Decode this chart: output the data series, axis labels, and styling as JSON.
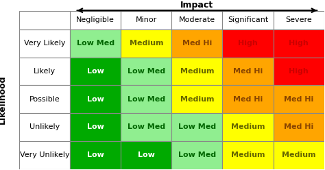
{
  "rows": [
    "Very Likely",
    "Likely",
    "Possible",
    "Unlikely",
    "Very Unlikely"
  ],
  "cols": [
    "Negligible",
    "Minor",
    "Moderate",
    "Significant",
    "Severe"
  ],
  "cell_labels": [
    [
      "Low Med",
      "Medium",
      "Med Hi",
      "High",
      "High"
    ],
    [
      "Low",
      "Low Med",
      "Medium",
      "Med Hi",
      "High"
    ],
    [
      "Low",
      "Low Med",
      "Medium",
      "Med Hi",
      "Med Hi"
    ],
    [
      "Low",
      "Low Med",
      "Low Med",
      "Medium",
      "Med Hi"
    ],
    [
      "Low",
      "Low",
      "Low Med",
      "Medium",
      "Medium"
    ]
  ],
  "cell_colors": [
    [
      "#90EE90",
      "#FFFF00",
      "#FFA500",
      "#FF0000",
      "#FF0000"
    ],
    [
      "#00AA00",
      "#90EE90",
      "#FFFF00",
      "#FFA500",
      "#FF0000"
    ],
    [
      "#00AA00",
      "#90EE90",
      "#FFFF00",
      "#FFA500",
      "#FFA500"
    ],
    [
      "#00AA00",
      "#90EE90",
      "#90EE90",
      "#FFFF00",
      "#FFA500"
    ],
    [
      "#00AA00",
      "#00AA00",
      "#90EE90",
      "#FFFF00",
      "#FFFF00"
    ]
  ],
  "cell_text_colors": [
    [
      "#006600",
      "#666600",
      "#884400",
      "#CC0000",
      "#CC0000"
    ],
    [
      "#FFFFFF",
      "#006600",
      "#666600",
      "#884400",
      "#CC0000"
    ],
    [
      "#FFFFFF",
      "#006600",
      "#666600",
      "#884400",
      "#884400"
    ],
    [
      "#FFFFFF",
      "#006600",
      "#006600",
      "#666600",
      "#884400"
    ],
    [
      "#FFFFFF",
      "#FFFFFF",
      "#006600",
      "#666600",
      "#666600"
    ]
  ],
  "title": "Impact",
  "ylabel": "Likelihood",
  "header_bg": "#FFFFFF",
  "row_header_bg": "#FFFFFF",
  "grid_color": "#888888",
  "font_size_cell": 8,
  "font_size_header": 8,
  "font_size_axis_label": 9
}
